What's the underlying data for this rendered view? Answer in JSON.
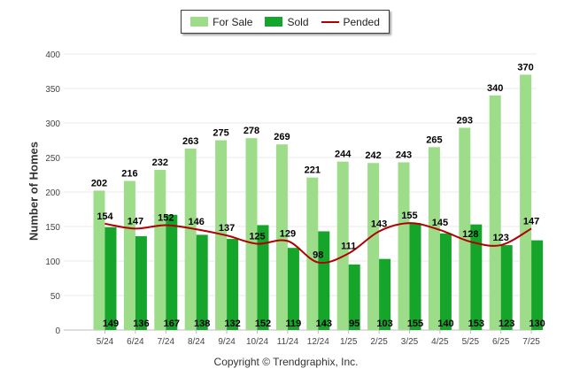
{
  "legend": {
    "for_sale": "For Sale",
    "sold": "Sold",
    "pended": "Pended"
  },
  "colors": {
    "for_sale": "#9ddd8a",
    "sold": "#14a52a",
    "pended": "#b00000",
    "grid": "#e8e8e8"
  },
  "footer": {
    "copyright": "Copyright © Trendgraphix, Inc."
  },
  "chart_data": {
    "type": "bar",
    "ylabel": "Number of Homes",
    "xlabel": "",
    "ylim": [
      0,
      400
    ],
    "yticks": [
      0,
      50,
      100,
      150,
      200,
      250,
      300,
      350,
      400
    ],
    "grid": true,
    "legend_position": "top-center",
    "categories": [
      "5/24",
      "6/24",
      "7/24",
      "8/24",
      "9/24",
      "10/24",
      "11/24",
      "12/24",
      "1/25",
      "2/25",
      "3/25",
      "4/25",
      "5/25",
      "6/25",
      "7/25"
    ],
    "series": [
      {
        "name": "For Sale",
        "kind": "bar",
        "values": [
          202,
          216,
          232,
          263,
          275,
          278,
          269,
          221,
          244,
          242,
          243,
          265,
          293,
          340,
          370
        ]
      },
      {
        "name": "Sold",
        "kind": "bar",
        "values": [
          149,
          136,
          167,
          138,
          132,
          152,
          119,
          143,
          95,
          103,
          155,
          140,
          153,
          123,
          130
        ]
      },
      {
        "name": "Pended",
        "kind": "line",
        "values": [
          154,
          147,
          152,
          146,
          137,
          125,
          129,
          98,
          111,
          143,
          155,
          145,
          128,
          123,
          147
        ]
      }
    ]
  }
}
